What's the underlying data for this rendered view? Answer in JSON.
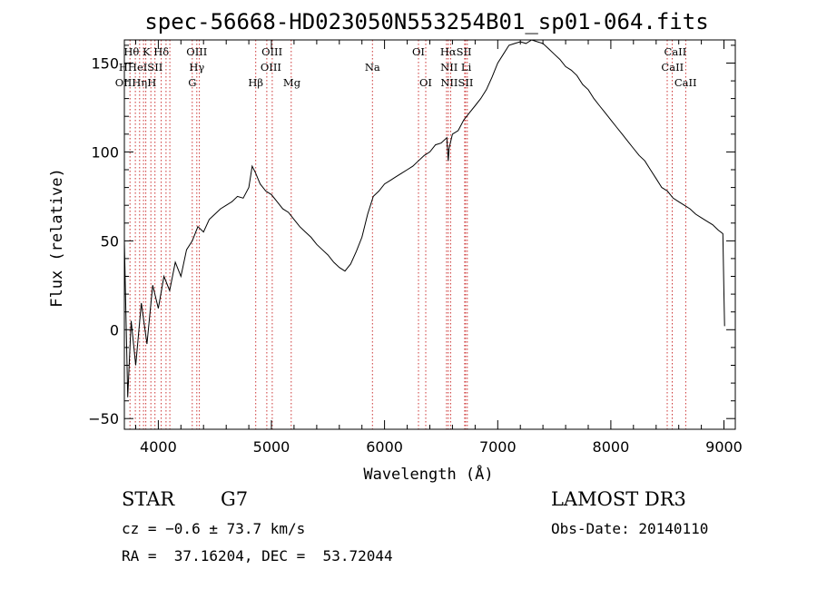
{
  "chart_data": {
    "type": "line",
    "title": "spec-56668-HD023050N553254B01_sp01-064.fits",
    "xlabel": "Wavelength (Å)",
    "ylabel": "Flux (relative)",
    "xlim": [
      3700,
      9100
    ],
    "ylim": [
      -56,
      163
    ],
    "x_ticks": [
      4000,
      5000,
      6000,
      7000,
      8000,
      9000
    ],
    "y_ticks": [
      -50,
      0,
      50,
      100,
      150
    ],
    "y_tick_labels": [
      "−50",
      "0",
      "50",
      "100",
      "150"
    ],
    "series": [
      {
        "name": "spectrum",
        "x": [
          3700,
          3730,
          3760,
          3800,
          3850,
          3900,
          3950,
          4000,
          4050,
          4100,
          4150,
          4200,
          4250,
          4300,
          4350,
          4400,
          4450,
          4500,
          4550,
          4600,
          4650,
          4700,
          4750,
          4800,
          4830,
          4861,
          4880,
          4900,
          4950,
          5000,
          5050,
          5100,
          5150,
          5200,
          5250,
          5300,
          5350,
          5400,
          5450,
          5500,
          5550,
          5600,
          5650,
          5700,
          5750,
          5800,
          5850,
          5900,
          5950,
          6000,
          6050,
          6100,
          6150,
          6200,
          6250,
          6300,
          6350,
          6400,
          6450,
          6500,
          6550,
          6563,
          6570,
          6600,
          6650,
          6700,
          6750,
          6800,
          6850,
          6900,
          6950,
          7000,
          7050,
          7100,
          7150,
          7200,
          7250,
          7300,
          7350,
          7400,
          7450,
          7500,
          7550,
          7600,
          7650,
          7700,
          7750,
          7800,
          7850,
          7900,
          7950,
          8000,
          8050,
          8100,
          8150,
          8200,
          8250,
          8300,
          8350,
          8400,
          8450,
          8500,
          8550,
          8600,
          8650,
          8700,
          8750,
          8800,
          8850,
          8900,
          8950,
          8990,
          9000,
          9005
        ],
        "values": [
          50,
          -38,
          5,
          -20,
          15,
          -8,
          25,
          12,
          30,
          22,
          38,
          30,
          45,
          50,
          58,
          55,
          62,
          65,
          68,
          70,
          72,
          75,
          74,
          80,
          92,
          88,
          85,
          82,
          78,
          76,
          72,
          68,
          66,
          62,
          58,
          55,
          52,
          48,
          45,
          42,
          38,
          35,
          33,
          37,
          44,
          52,
          65,
          75,
          78,
          82,
          84,
          86,
          88,
          90,
          92,
          95,
          98,
          100,
          104,
          105,
          108,
          95,
          102,
          110,
          112,
          118,
          122,
          126,
          130,
          135,
          142,
          150,
          155,
          160,
          161,
          162,
          161,
          163,
          162,
          161,
          158,
          155,
          152,
          148,
          146,
          143,
          138,
          135,
          130,
          126,
          122,
          118,
          114,
          110,
          106,
          102,
          98,
          95,
          90,
          85,
          80,
          78,
          74,
          72,
          70,
          68,
          65,
          63,
          61,
          59,
          56,
          54,
          20,
          2
        ]
      }
    ],
    "line_groups": [
      {
        "name": "line-group-hdelta-k-hdelta",
        "row": 1,
        "label": "Hθ K Hδ",
        "label_at": 3895
      },
      {
        "name": "line-group-oiii-1",
        "row": 1,
        "label": "OIII",
        "label_at": 4340
      },
      {
        "name": "line-group-oiii-2",
        "row": 1,
        "label": "OIII",
        "label_at": 5005
      },
      {
        "name": "line-group-oi-1",
        "row": 1,
        "label": "OI",
        "label_at": 6300
      },
      {
        "name": "line-group-halpha-sii",
        "row": 1,
        "label": "HαSII",
        "label_at": 6630
      },
      {
        "name": "line-group-caii-1",
        "row": 1,
        "label": "CaII",
        "label_at": 8570
      },
      {
        "name": "line-group-h-hei-sii",
        "row": 2,
        "label": "HHeISII",
        "label_at": 3845
      },
      {
        "name": "line-group-hgamma",
        "row": 2,
        "label": "Hγ",
        "label_at": 4340
      },
      {
        "name": "line-group-oiii-3",
        "row": 2,
        "label": "OIII",
        "label_at": 4995
      },
      {
        "name": "line-group-na",
        "row": 2,
        "label": "Na",
        "label_at": 5893
      },
      {
        "name": "line-group-nii-li",
        "row": 2,
        "label": "NII Li",
        "label_at": 6630
      },
      {
        "name": "line-group-caii-2",
        "row": 2,
        "label": "CaII",
        "label_at": 8545
      },
      {
        "name": "line-group-oi-heta-h",
        "row": 3,
        "label": "OIIHηH",
        "label_at": 3800
      },
      {
        "name": "line-group-g",
        "row": 3,
        "label": "G",
        "label_at": 4300
      },
      {
        "name": "line-group-hbeta",
        "row": 3,
        "label": "Hβ",
        "label_at": 4861
      },
      {
        "name": "line-group-mg",
        "row": 3,
        "label": "Mg",
        "label_at": 5180
      },
      {
        "name": "line-group-oi-2",
        "row": 3,
        "label": "OI",
        "label_at": 6364
      },
      {
        "name": "line-group-niisii",
        "row": 3,
        "label": "NIISII",
        "label_at": 6640
      },
      {
        "name": "line-group-caii-3",
        "row": 3,
        "label": "CaII",
        "label_at": 8660
      }
    ],
    "line_positions": [
      3750,
      3797,
      3835,
      3869,
      3889,
      3934,
      3970,
      4026,
      4068,
      4102,
      4300,
      4340,
      4363,
      4861,
      4959,
      5007,
      5175,
      5893,
      6300,
      6364,
      6548,
      6563,
      6584,
      6708,
      6716,
      6731,
      8498,
      8542,
      8662
    ]
  },
  "info": {
    "object_class": "STAR",
    "subclass": "G7",
    "survey": "LAMOST DR3",
    "cz": "cz = −0.6 ± 73.7 km/s",
    "obs_date": "Obs-Date: 20140110",
    "coords": "RA =  37.16204, DEC =  53.72044"
  },
  "colors": {
    "line_marker": "#cc3333",
    "spectrum": "#000000",
    "axis": "#000000"
  }
}
